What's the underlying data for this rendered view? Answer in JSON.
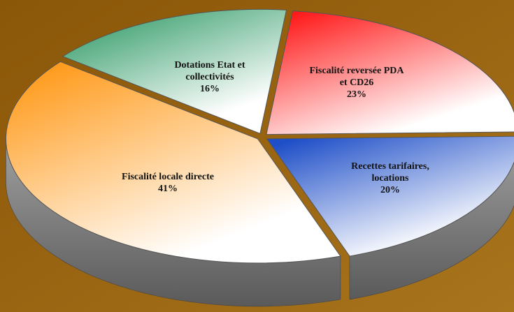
{
  "chart_data": {
    "type": "pie",
    "categories": [
      "Fiscalité reversée PDA et CD26",
      "Recettes tarifaires, locations",
      "Fiscalité locale directe",
      "Dotations Etat et collectivités"
    ],
    "values": [
      23,
      20,
      41,
      16
    ],
    "value_labels": [
      "23%",
      "20%",
      "41%",
      "16%"
    ],
    "colors": [
      "#ff1a1a",
      "#1f4fc8",
      "#ff9a1a",
      "#2f9a66"
    ]
  }
}
